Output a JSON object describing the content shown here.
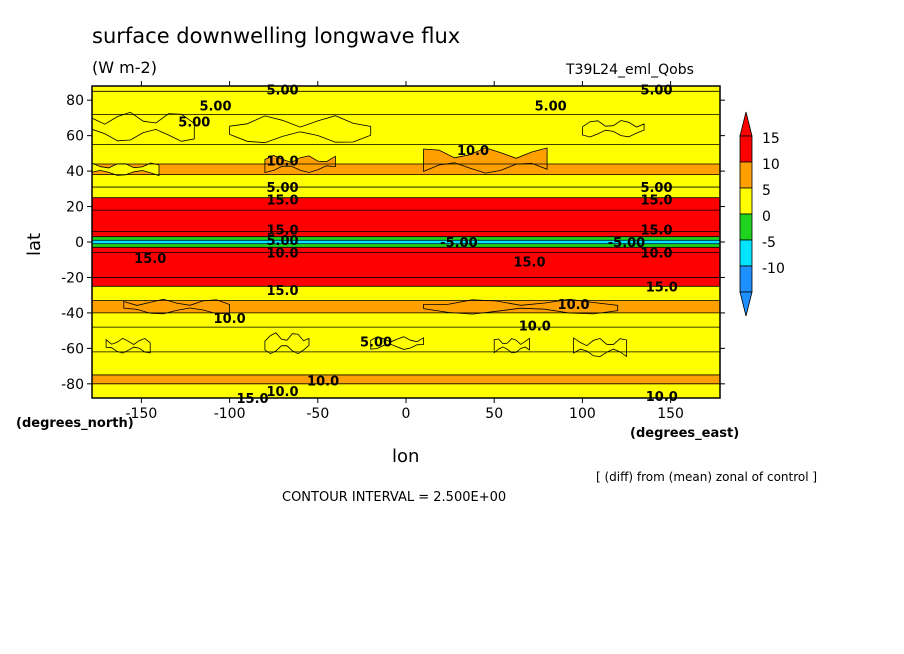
{
  "title": "surface downwelling longwave flux",
  "units": "(W m-2)",
  "run_name": "T39L24_eml_Qobs",
  "xaxis_units": "(degrees_east)",
  "yaxis_units": "(degrees_north)",
  "xlabel": "lon",
  "ylabel": "lat",
  "note": "[ (diff) from (mean) zonal of control ]",
  "contour_interval": "CONTOUR INTERVAL = 2.500E+00",
  "chart_data": {
    "type": "heatmap",
    "title": "surface downwelling longwave flux",
    "xlabel": "lon",
    "ylabel": "lat",
    "xlim": [
      -178,
      178
    ],
    "ylim": [
      -88,
      88
    ],
    "x_ticks": [
      -150,
      -100,
      -50,
      0,
      50,
      100,
      150
    ],
    "y_ticks": [
      -80,
      -60,
      -40,
      -20,
      0,
      20,
      40,
      60,
      80
    ],
    "colorbar": {
      "levels": [
        -10,
        -5,
        0,
        5,
        10,
        15
      ],
      "colors": [
        "#1e90ff",
        "#00e5ff",
        "#1ed41e",
        "#ffff00",
        "#ffa000",
        "#ff0000"
      ],
      "labels": [
        "15",
        "10",
        "5",
        "0",
        "-5",
        "-10"
      ]
    },
    "bands": [
      {
        "lat": [
          85,
          88
        ],
        "value": 0
      },
      {
        "lat": [
          72,
          85
        ],
        "value": 2.5
      },
      {
        "lat": [
          55,
          72
        ],
        "value": 0
      },
      {
        "lat": [
          44,
          55
        ],
        "value": 2.5
      },
      {
        "lat": [
          38,
          44
        ],
        "value": 7.5
      },
      {
        "lat": [
          31,
          38
        ],
        "value": 2.5
      },
      {
        "lat": [
          25,
          31
        ],
        "value": 0
      },
      {
        "lat": [
          18,
          25
        ],
        "value": 12.5
      },
      {
        "lat": [
          6,
          18
        ],
        "value": 17.5
      },
      {
        "lat": [
          3,
          6
        ],
        "value": 12.5
      },
      {
        "lat": [
          1,
          3
        ],
        "value": -2.5
      },
      {
        "lat": [
          -1,
          1
        ],
        "value": -7.5
      },
      {
        "lat": [
          -3,
          -1
        ],
        "value": -2.5
      },
      {
        "lat": [
          -6,
          -3
        ],
        "value": 12.5
      },
      {
        "lat": [
          -20,
          -6
        ],
        "value": 17.5
      },
      {
        "lat": [
          -25,
          -20
        ],
        "value": 12.5
      },
      {
        "lat": [
          -33,
          -25
        ],
        "value": 2.5
      },
      {
        "lat": [
          -40,
          -33
        ],
        "value": 7.5
      },
      {
        "lat": [
          -48,
          -40
        ],
        "value": 2.5
      },
      {
        "lat": [
          -62,
          -48
        ],
        "value": 2.5
      },
      {
        "lat": [
          -75,
          -62
        ],
        "value": 2.5
      },
      {
        "lat": [
          -80,
          -75
        ],
        "value": 7.5
      },
      {
        "lat": [
          -88,
          -80
        ],
        "value": 2.5
      }
    ],
    "patches": [
      {
        "lon": [
          -178,
          -120
        ],
        "lat": [
          58,
          72
        ],
        "value": 0
      },
      {
        "lon": [
          -100,
          -20
        ],
        "lat": [
          57,
          70
        ],
        "value": 0
      },
      {
        "lon": [
          100,
          135
        ],
        "lat": [
          60,
          68
        ],
        "value": 0
      },
      {
        "lon": [
          -80,
          -40
        ],
        "lat": [
          40,
          48
        ],
        "value": 7.5
      },
      {
        "lon": [
          10,
          80
        ],
        "lat": [
          40,
          52
        ],
        "value": 7.5
      },
      {
        "lon": [
          -180,
          -140
        ],
        "lat": [
          38,
          44
        ],
        "value": 2.5
      },
      {
        "lon": [
          -160,
          -100
        ],
        "lat": [
          -40,
          -33
        ],
        "value": 7.5
      },
      {
        "lon": [
          10,
          120
        ],
        "lat": [
          -40,
          -33
        ],
        "value": 7.5
      },
      {
        "lon": [
          -80,
          -55
        ],
        "lat": [
          -62,
          -52
        ],
        "value": 0
      },
      {
        "lon": [
          -20,
          10
        ],
        "lat": [
          -60,
          -54
        ],
        "value": 0
      },
      {
        "lon": [
          50,
          70
        ],
        "lat": [
          -62,
          -55
        ],
        "value": 0
      },
      {
        "lon": [
          95,
          125
        ],
        "lat": [
          -64,
          -55
        ],
        "value": 0
      },
      {
        "lon": [
          -170,
          -145
        ],
        "lat": [
          -62,
          -55
        ],
        "value": 0
      }
    ],
    "contour_labels": [
      {
        "text": "5.00",
        "lon": -70,
        "lat": 86
      },
      {
        "text": "5.00",
        "lon": 142,
        "lat": 86
      },
      {
        "text": "5.00",
        "lon": -108,
        "lat": 77
      },
      {
        "text": "5.00",
        "lon": -120,
        "lat": 68
      },
      {
        "text": "5.00",
        "lon": 82,
        "lat": 77
      },
      {
        "text": "10.0",
        "lon": -70,
        "lat": 46
      },
      {
        "text": "10.0",
        "lon": 38,
        "lat": 52
      },
      {
        "text": "5.00",
        "lon": -70,
        "lat": 31
      },
      {
        "text": "5.00",
        "lon": 142,
        "lat": 31
      },
      {
        "text": "15.0",
        "lon": -70,
        "lat": 24
      },
      {
        "text": "15.0",
        "lon": 142,
        "lat": 24
      },
      {
        "text": "15.0",
        "lon": -70,
        "lat": 7
      },
      {
        "text": "15.0",
        "lon": 142,
        "lat": 7
      },
      {
        "text": "5.00",
        "lon": -70,
        "lat": 1
      },
      {
        "text": "-5.00",
        "lon": 30,
        "lat": 0
      },
      {
        "text": "-5.00",
        "lon": 125,
        "lat": 0
      },
      {
        "text": "10.0",
        "lon": -70,
        "lat": -6
      },
      {
        "text": "10.0",
        "lon": 142,
        "lat": -6
      },
      {
        "text": "15.0",
        "lon": -145,
        "lat": -9
      },
      {
        "text": "15.0",
        "lon": 70,
        "lat": -11
      },
      {
        "text": "15.0",
        "lon": -70,
        "lat": -27
      },
      {
        "text": "15.0",
        "lon": 145,
        "lat": -25
      },
      {
        "text": "10.0",
        "lon": -100,
        "lat": -43
      },
      {
        "text": "10.0",
        "lon": 95,
        "lat": -35
      },
      {
        "text": "10.0",
        "lon": 73,
        "lat": -47
      },
      {
        "text": "5.00",
        "lon": -17,
        "lat": -56
      },
      {
        "text": "10.0",
        "lon": -47,
        "lat": -78
      },
      {
        "text": "10.0",
        "lon": -70,
        "lat": -84
      },
      {
        "text": "15.0",
        "lon": -87,
        "lat": -88
      },
      {
        "text": "10.0",
        "lon": 145,
        "lat": -87
      }
    ]
  }
}
